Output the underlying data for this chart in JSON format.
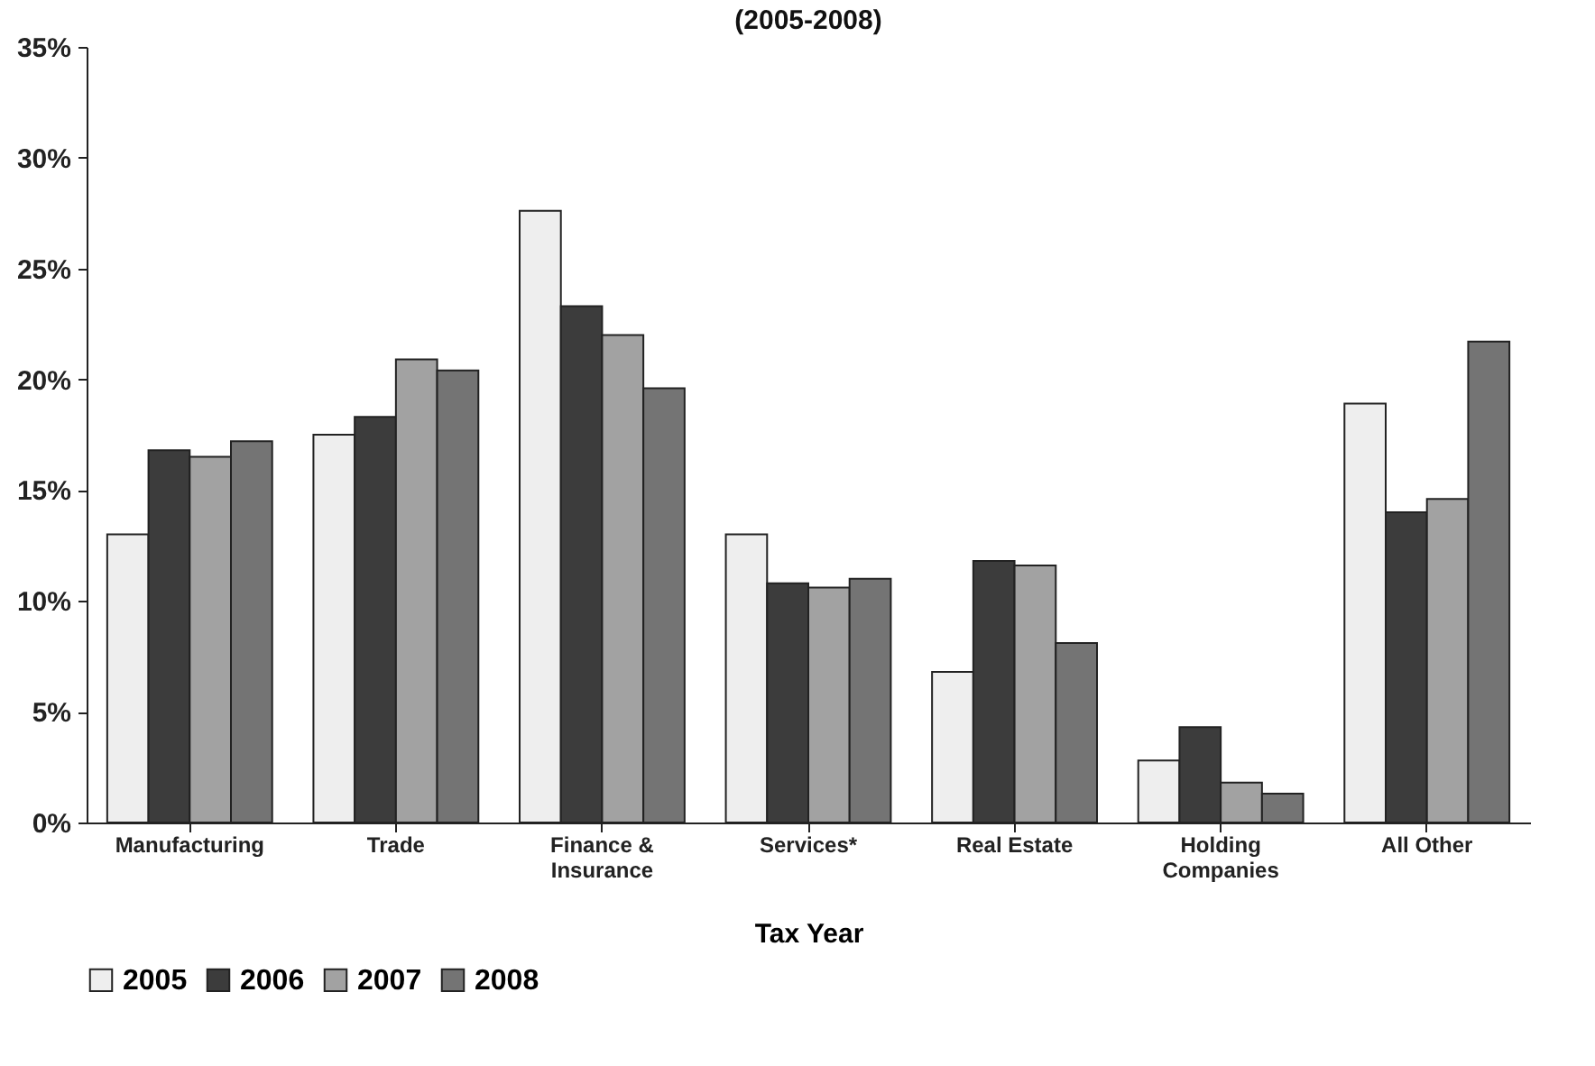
{
  "chart_data": {
    "type": "bar",
    "title": "(2005-2008)",
    "xlabel": "Tax Year",
    "categories": [
      "Manufacturing",
      "Trade",
      "Finance & Insurance",
      "Services*",
      "Real Estate",
      "Holding Companies",
      "All Other"
    ],
    "series": [
      {
        "name": "2005",
        "color": "#eeeeee",
        "values": [
          13.0,
          17.5,
          27.6,
          13.0,
          6.8,
          2.8,
          18.9
        ]
      },
      {
        "name": "2006",
        "color": "#3c3c3c",
        "values": [
          16.8,
          18.3,
          23.3,
          10.8,
          11.8,
          4.3,
          14.0
        ]
      },
      {
        "name": "2007",
        "color": "#a2a2a2",
        "values": [
          16.5,
          20.9,
          22.0,
          10.6,
          11.6,
          1.8,
          14.6
        ]
      },
      {
        "name": "2008",
        "color": "#747474",
        "values": [
          17.2,
          20.4,
          19.6,
          11.0,
          8.1,
          1.3,
          21.7
        ]
      }
    ],
    "ylim": [
      0,
      35
    ],
    "yticks": [
      {
        "value": 0,
        "label": "0%"
      },
      {
        "value": 5,
        "label": "5%"
      },
      {
        "value": 10,
        "label": "10%"
      },
      {
        "value": 15,
        "label": "15%"
      },
      {
        "value": 20,
        "label": "20%"
      },
      {
        "value": 25,
        "label": "25%"
      },
      {
        "value": 30,
        "label": "30%"
      },
      {
        "value": 35,
        "label": "35%"
      }
    ],
    "grid": false,
    "legend": "bottom"
  }
}
